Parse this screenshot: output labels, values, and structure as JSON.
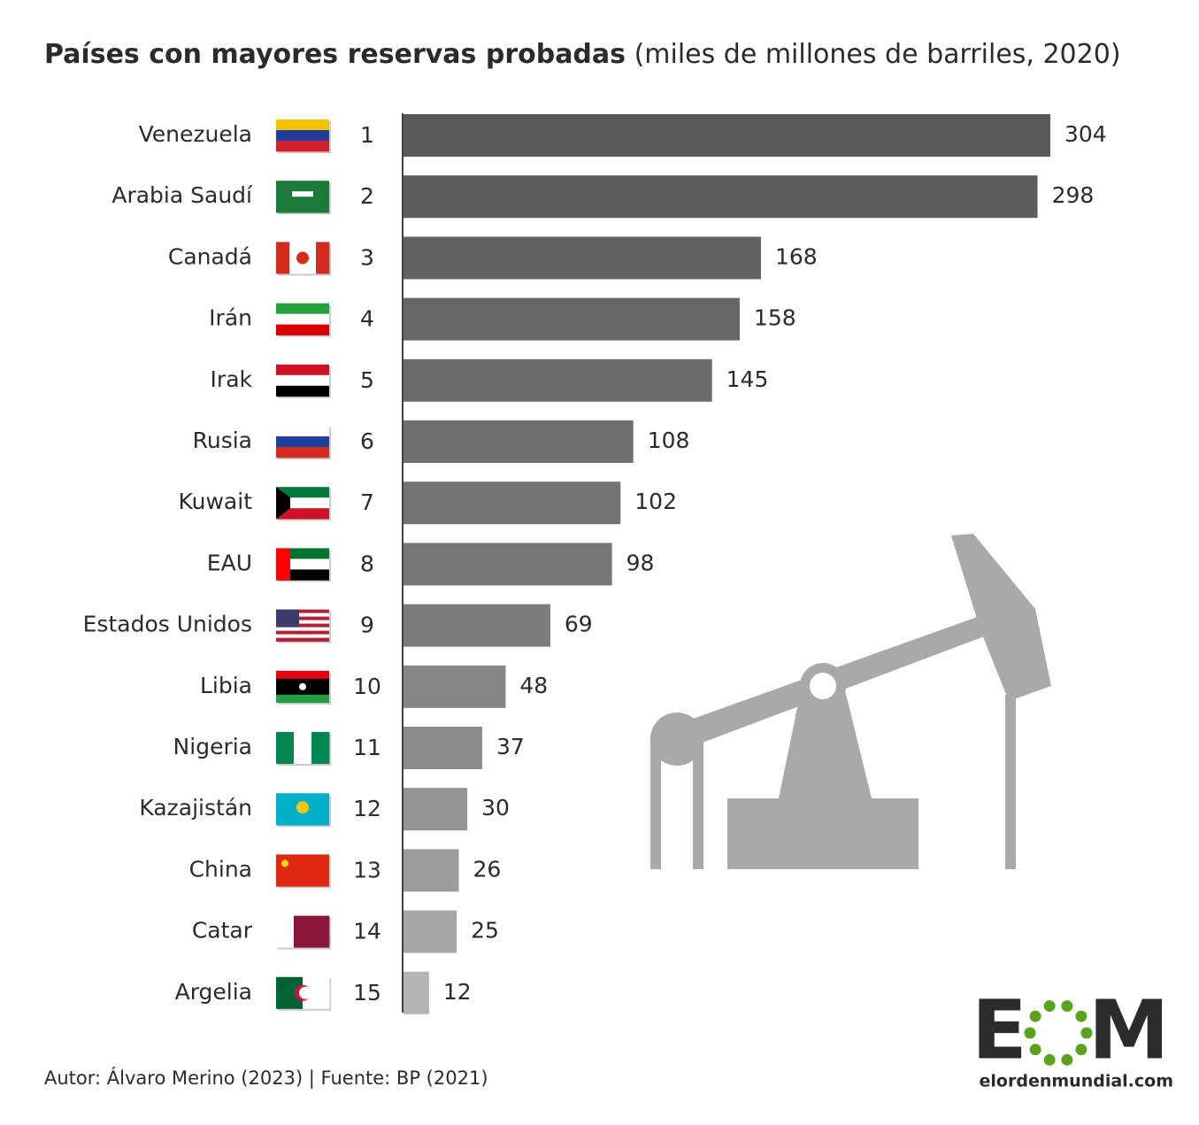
{
  "chart_data": {
    "type": "bar",
    "orientation": "horizontal",
    "title": "Países con mayores reservas probadas",
    "subtitle": "(miles de millones de barriles, 2020)",
    "categories": [
      "Venezuela",
      "Arabia Saudí",
      "Canadá",
      "Irán",
      "Irak",
      "Rusia",
      "Kuwait",
      "EAU",
      "Estados Unidos",
      "Libia",
      "Nigeria",
      "Kazajistán",
      "China",
      "Catar",
      "Argelia"
    ],
    "ranks": [
      1,
      2,
      3,
      4,
      5,
      6,
      7,
      8,
      9,
      10,
      11,
      12,
      13,
      14,
      15
    ],
    "values": [
      304,
      298,
      168,
      158,
      145,
      108,
      102,
      98,
      69,
      48,
      37,
      30,
      26,
      25,
      12
    ],
    "colors": [
      "#5a5a5a",
      "#5c5c5c",
      "#626262",
      "#666666",
      "#6a6a6a",
      "#6f6f6f",
      "#737373",
      "#777777",
      "#7d7d7d",
      "#858585",
      "#8c8c8c",
      "#939393",
      "#9c9c9c",
      "#a6a6a6",
      "#b4b4b4"
    ],
    "source": "Autor: Álvaro Merino (2023) | Fuente: BP (2021)",
    "logo": {
      "letters": [
        "E",
        "M"
      ],
      "site": "elordenmundial.com"
    }
  }
}
